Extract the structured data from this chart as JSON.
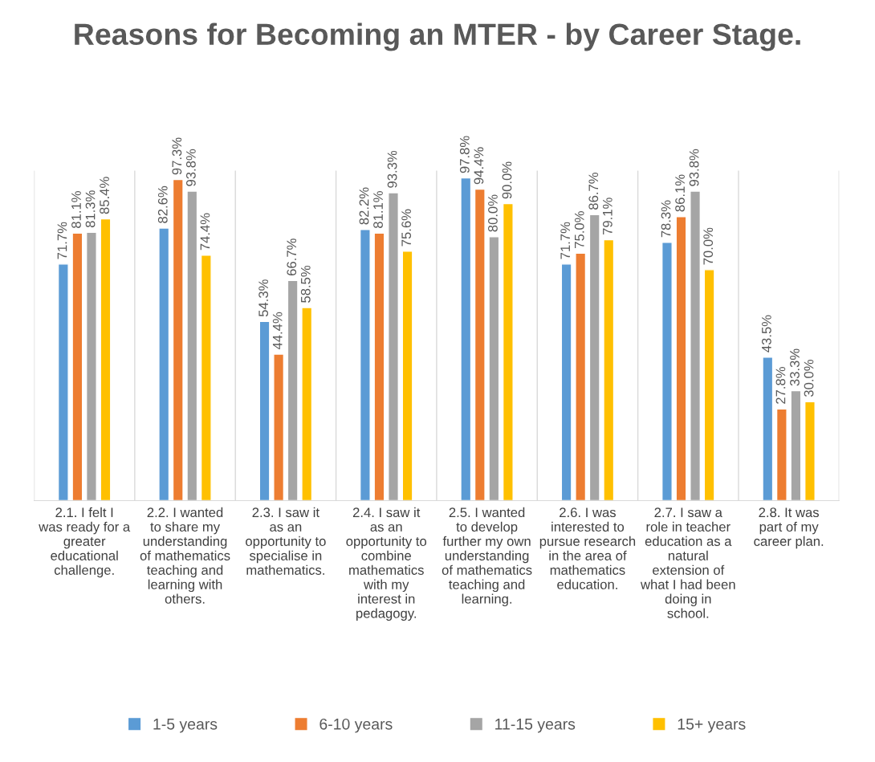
{
  "chart_data": {
    "type": "bar",
    "title": "Reasons for Becoming an MTER - by Career Stage.",
    "categories": [
      "2.1. I felt I was ready for a greater educational challenge.",
      "2.2. I wanted to share my understanding of mathematics teaching and learning with others.",
      "2.3. I saw it as an opportunity to specialise in mathematics.",
      "2.4. I saw it as an opportunity to combine mathematics with my interest in pedagogy.",
      "2.5. I wanted to develop further my own understanding of mathematics teaching and learning.",
      "2.6. I was interested to pursue research in the area of mathematics education.",
      "2.7. I saw a role in teacher education as a natural extension of what I had been doing in school.",
      "2.8. It was part of my career plan."
    ],
    "series": [
      {
        "name": "1-5 years",
        "color": "#5b9bd5",
        "values": [
          71.7,
          82.6,
          54.3,
          82.2,
          97.8,
          71.7,
          78.3,
          43.5
        ],
        "value_labels": [
          "71.7%",
          "82.6%",
          "54.3%",
          "82.2%",
          "97.8%",
          "71.7%",
          "78.3%",
          "43.5%"
        ]
      },
      {
        "name": "6-10 years",
        "color": "#ed7d31",
        "values": [
          81.1,
          97.3,
          44.4,
          81.1,
          94.4,
          75.0,
          86.1,
          27.8
        ],
        "value_labels": [
          "81.1%",
          "97.3%",
          "44.4%",
          "81.1%",
          "94.4%",
          "75.0%",
          "86.1%",
          "27.8%"
        ]
      },
      {
        "name": "11-15 years",
        "color": "#a5a5a5",
        "values": [
          81.3,
          93.8,
          66.7,
          93.3,
          80.0,
          86.7,
          93.8,
          33.3
        ],
        "value_labels": [
          "81.3%",
          "93.8%",
          "66.7%",
          "93.3%",
          "80.0%",
          "86.7%",
          "93.8%",
          "33.3%"
        ]
      },
      {
        "name": "15+ years",
        "color": "#ffc000",
        "values": [
          85.4,
          74.4,
          58.5,
          75.6,
          90.0,
          79.1,
          70.0,
          30.0
        ],
        "value_labels": [
          "85.4%",
          "74.4%",
          "58.5%",
          "75.6%",
          "90.0%",
          "79.1%",
          "70.0%",
          "30.0%"
        ]
      }
    ],
    "ylim": [
      0,
      100
    ],
    "tick_labels": "x",
    "grid": "x",
    "legend": "bottom"
  }
}
